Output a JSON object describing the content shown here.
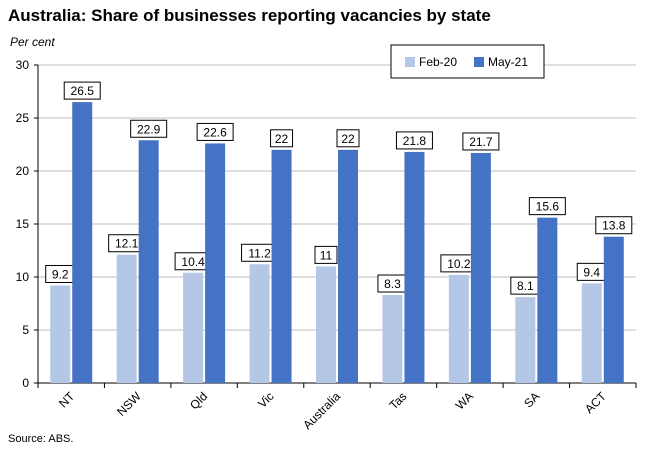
{
  "title": "Australia: Share of businesses reporting vacancies by state",
  "source": "Source: ABS.",
  "colors": {
    "feb20": "#B4C7E7",
    "may21": "#4472C4",
    "grid": "#BFBFBF"
  },
  "chart_data": {
    "type": "bar",
    "title": "Australia: Share of businesses reporting vacancies by state",
    "ylabel": "Per cent",
    "xlabel": "",
    "ylim": [
      0,
      30
    ],
    "yticks": [
      0,
      5,
      10,
      15,
      20,
      25,
      30
    ],
    "grid": true,
    "legend_position": "top-right",
    "categories": [
      "NT",
      "NSW",
      "Qld",
      "Vic",
      "Australia",
      "Tas",
      "WA",
      "SA",
      "ACT"
    ],
    "series": [
      {
        "name": "Feb-20",
        "values": [
          9.2,
          12.1,
          10.4,
          11.2,
          11,
          8.3,
          10.2,
          8.1,
          9.4
        ]
      },
      {
        "name": "May-21",
        "values": [
          26.5,
          22.9,
          22.6,
          22,
          22,
          21.8,
          21.7,
          15.6,
          13.8
        ]
      }
    ]
  }
}
